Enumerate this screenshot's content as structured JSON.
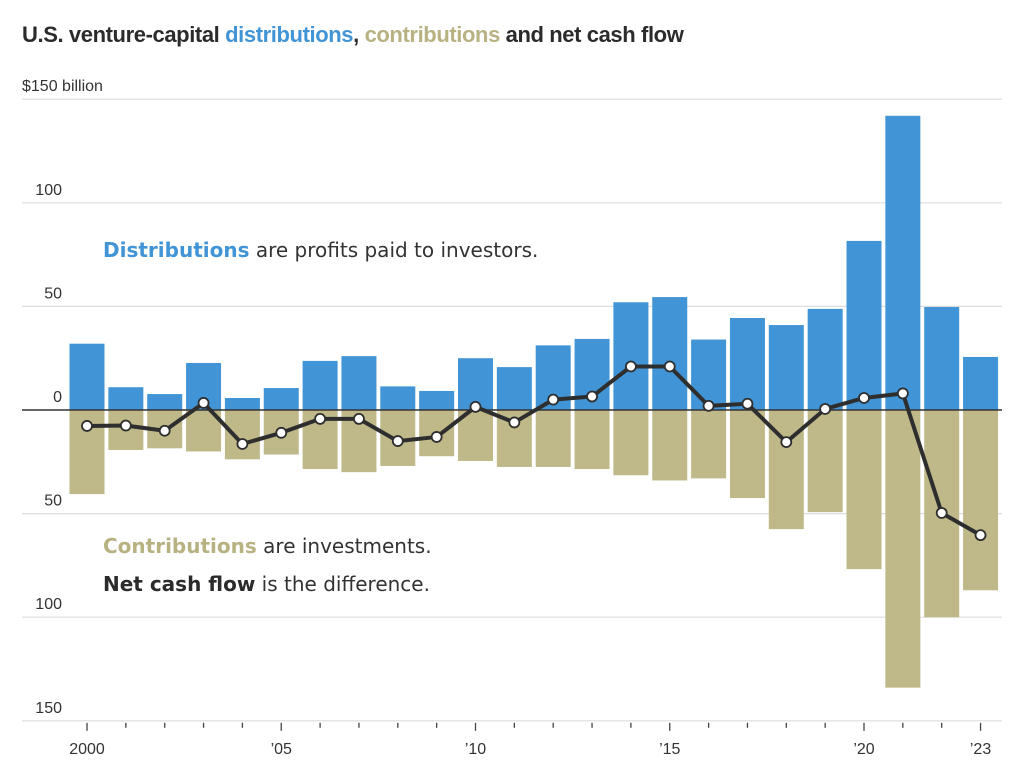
{
  "title": {
    "prefix": "U.S. venture-capital ",
    "distributions": "distributions",
    "comma": ",",
    "contributions": "contributions",
    "suffix": " and net cash flow"
  },
  "colors": {
    "distributions": "#4195d6",
    "contributions": "#bfb98a",
    "net_line": "#2e2e2e",
    "gridline": "#dddddd",
    "zero_line": "#333333",
    "text": "#333333"
  },
  "annotations": {
    "distributions_key": "Distributions",
    "distributions_rest": " are profits paid to investors.",
    "contributions_key": "Contributions",
    "contributions_rest": " are investments.",
    "net_key": "Net cash flow",
    "net_rest": " is the difference."
  },
  "chart_data": {
    "type": "bar",
    "title": "U.S. venture-capital distributions, contributions and net cash flow",
    "xlabel": "",
    "ylabel": "$ billion",
    "unit_label": "$150 billion",
    "ylim": [
      -150,
      150
    ],
    "yticks": [
      150,
      100,
      50,
      0,
      -50,
      -100,
      -150
    ],
    "ytick_labels": [
      "$150 billion",
      "100",
      "50",
      "0",
      "50",
      "100",
      "150"
    ],
    "grid": true,
    "categories": [
      2000,
      2001,
      2002,
      2003,
      2004,
      2005,
      2006,
      2007,
      2008,
      2009,
      2010,
      2011,
      2012,
      2013,
      2014,
      2015,
      2016,
      2017,
      2018,
      2019,
      2020,
      2021,
      2022,
      2023
    ],
    "xtick_labels": {
      "2000": "2000",
      "2005": "’05",
      "2010": "’10",
      "2015": "’15",
      "2020": "’20",
      "2023": "’23"
    },
    "series": [
      {
        "name": "Distributions",
        "type": "bar",
        "values": [
          32,
          11,
          7.7,
          22.7,
          5.8,
          10.6,
          23.7,
          26,
          11.4,
          9.2,
          25,
          20.7,
          31.2,
          34.3,
          52,
          54.5,
          34,
          44.4,
          41,
          48.8,
          81.6,
          142,
          49.7,
          25.6
        ]
      },
      {
        "name": "Contributions",
        "type": "bar",
        "values": [
          -40.6,
          -19.3,
          -18.5,
          -20,
          -23.8,
          -21.5,
          -28.5,
          -30,
          -27,
          -22.3,
          -24.6,
          -27.5,
          -27.5,
          -28.5,
          -31.5,
          -34,
          -33,
          -42.5,
          -57.5,
          -49.3,
          -76.8,
          -134,
          -100,
          -87
        ]
      },
      {
        "name": "Net cash flow",
        "type": "line",
        "values": [
          -7.7,
          -7.5,
          -10,
          3.4,
          -16.4,
          -11,
          -4.3,
          -4.3,
          -15,
          -13,
          1.5,
          -6,
          5,
          6.5,
          21,
          21,
          2,
          3,
          -15.5,
          0.5,
          5.8,
          8,
          -49.7,
          -60.4
        ]
      }
    ]
  }
}
